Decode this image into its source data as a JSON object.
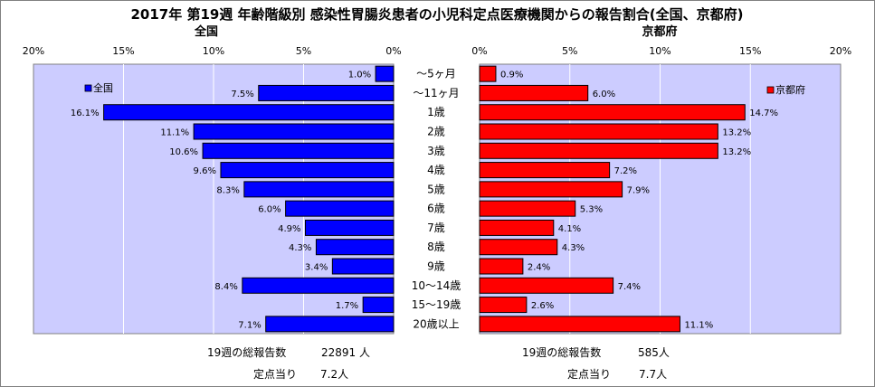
{
  "title": "2017年 第19週 年齢階級別 感染性胃腸炎患者の小児科定点医療機関からの報告割合(全国、京都府)",
  "colors": {
    "national": "#0000ff",
    "kyoto": "#ff0000",
    "plot_bg": "#ccccff"
  },
  "chart_data": [
    {
      "type": "bar",
      "orientation": "horizontal-reversed",
      "title": "全国",
      "legend": "全国",
      "legend_placement": "top-left",
      "xlim": [
        0,
        20
      ],
      "ticks": [
        "0%",
        "5%",
        "10%",
        "15%",
        "20%"
      ],
      "categories": [
        "～5ヶ月",
        "～11ヶ月",
        "1歳",
        "2歳",
        "3歳",
        "4歳",
        "5歳",
        "6歳",
        "7歳",
        "8歳",
        "9歳",
        "10～14歳",
        "15～19歳",
        "20歳以上"
      ],
      "values": [
        1.0,
        7.5,
        16.1,
        11.1,
        10.6,
        9.6,
        8.3,
        6.0,
        4.9,
        4.3,
        3.4,
        8.4,
        1.7,
        7.1
      ],
      "labels": [
        "1.0%",
        "7.5%",
        "16.1%",
        "11.1%",
        "10.6%",
        "9.6%",
        "8.3%",
        "6.0%",
        "4.9%",
        "4.3%",
        "3.4%",
        "8.4%",
        "1.7%",
        "7.1%"
      ]
    },
    {
      "type": "bar",
      "orientation": "horizontal",
      "title": "京都府",
      "legend": "京都府",
      "legend_placement": "top-right",
      "xlim": [
        0,
        20
      ],
      "ticks": [
        "0%",
        "5%",
        "10%",
        "15%",
        "20%"
      ],
      "categories": [
        "～5ヶ月",
        "～11ヶ月",
        "1歳",
        "2歳",
        "3歳",
        "4歳",
        "5歳",
        "6歳",
        "7歳",
        "8歳",
        "9歳",
        "10～14歳",
        "15～19歳",
        "20歳以上"
      ],
      "values": [
        0.9,
        6.0,
        14.7,
        13.2,
        13.2,
        7.2,
        7.9,
        5.3,
        4.1,
        4.3,
        2.4,
        7.4,
        2.6,
        11.1
      ],
      "labels": [
        "0.9%",
        "6.0%",
        "14.7%",
        "13.2%",
        "13.2%",
        "7.2%",
        "7.9%",
        "5.3%",
        "4.1%",
        "4.3%",
        "2.4%",
        "7.4%",
        "2.6%",
        "11.1%"
      ]
    }
  ],
  "footer": {
    "national_total_label": "19週の総報告数",
    "national_total_value": "22891 人",
    "national_per_label": "定点当り",
    "national_per_value": "7.2人",
    "kyoto_total_label": "19週の総報告数",
    "kyoto_total_value": "585人",
    "kyoto_per_label": "定点当り",
    "kyoto_per_value": "7.7人"
  }
}
